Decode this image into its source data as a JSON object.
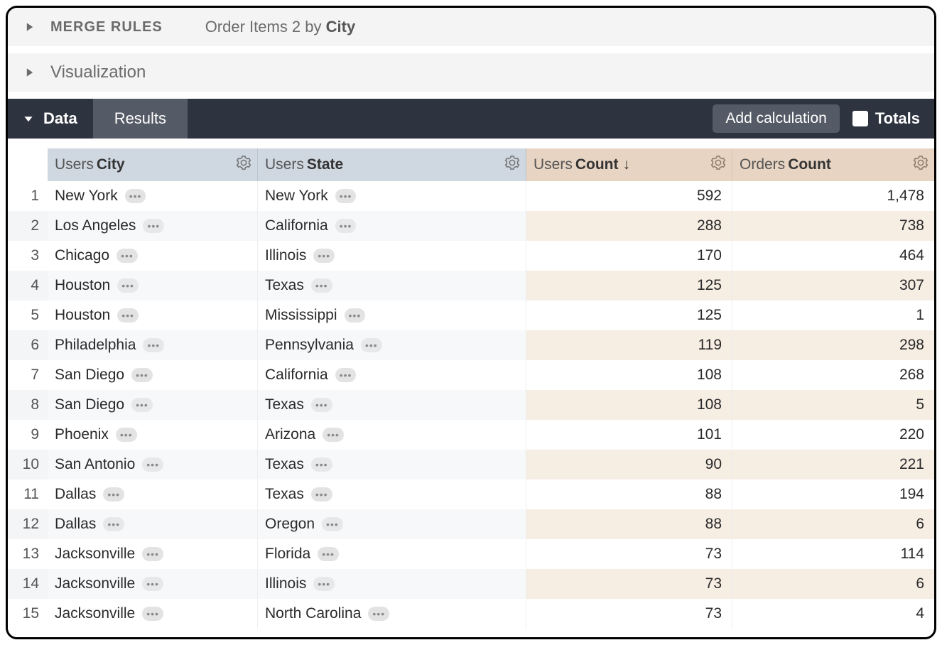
{
  "colors": {
    "section_bg": "#f4f4f4",
    "databar_bg": "#2d3440",
    "tab_bg": "#555b66",
    "dim_header_bg": "#cfd7e1",
    "meas_header_bg": "#e7d4c2",
    "row_even_dim_bg": "#f7f8fa",
    "row_even_meas_bg": "#f6ede3"
  },
  "sections": {
    "merge": {
      "label": "Merge Rules",
      "subtitle_prefix": "Order Items 2 by ",
      "subtitle_bold": "City"
    },
    "viz": {
      "label": "Visualization"
    }
  },
  "databar": {
    "data_label": "Data",
    "results_label": "Results",
    "add_calc_label": "Add calculation",
    "totals_label": "Totals"
  },
  "table": {
    "columns": [
      {
        "prefix": "Users",
        "name": "City",
        "type": "dim",
        "sort": null
      },
      {
        "prefix": "Users",
        "name": "State",
        "type": "dim",
        "sort": null
      },
      {
        "prefix": "Users",
        "name": "Count",
        "type": "meas",
        "sort": "desc"
      },
      {
        "prefix": "Orders",
        "name": "Count",
        "type": "meas",
        "sort": null
      }
    ],
    "rows": [
      {
        "n": 1,
        "city": "New York",
        "state": "New York",
        "ucount": "592",
        "ocount": "1,478"
      },
      {
        "n": 2,
        "city": "Los Angeles",
        "state": "California",
        "ucount": "288",
        "ocount": "738"
      },
      {
        "n": 3,
        "city": "Chicago",
        "state": "Illinois",
        "ucount": "170",
        "ocount": "464"
      },
      {
        "n": 4,
        "city": "Houston",
        "state": "Texas",
        "ucount": "125",
        "ocount": "307"
      },
      {
        "n": 5,
        "city": "Houston",
        "state": "Mississippi",
        "ucount": "125",
        "ocount": "1"
      },
      {
        "n": 6,
        "city": "Philadelphia",
        "state": "Pennsylvania",
        "ucount": "119",
        "ocount": "298"
      },
      {
        "n": 7,
        "city": "San Diego",
        "state": "California",
        "ucount": "108",
        "ocount": "268"
      },
      {
        "n": 8,
        "city": "San Diego",
        "state": "Texas",
        "ucount": "108",
        "ocount": "5"
      },
      {
        "n": 9,
        "city": "Phoenix",
        "state": "Arizona",
        "ucount": "101",
        "ocount": "220"
      },
      {
        "n": 10,
        "city": "San Antonio",
        "state": "Texas",
        "ucount": "90",
        "ocount": "221"
      },
      {
        "n": 11,
        "city": "Dallas",
        "state": "Texas",
        "ucount": "88",
        "ocount": "194"
      },
      {
        "n": 12,
        "city": "Dallas",
        "state": "Oregon",
        "ucount": "88",
        "ocount": "6"
      },
      {
        "n": 13,
        "city": "Jacksonville",
        "state": "Florida",
        "ucount": "73",
        "ocount": "114"
      },
      {
        "n": 14,
        "city": "Jacksonville",
        "state": "Illinois",
        "ucount": "73",
        "ocount": "6"
      },
      {
        "n": 15,
        "city": "Jacksonville",
        "state": "North Carolina",
        "ucount": "73",
        "ocount": "4"
      }
    ]
  }
}
